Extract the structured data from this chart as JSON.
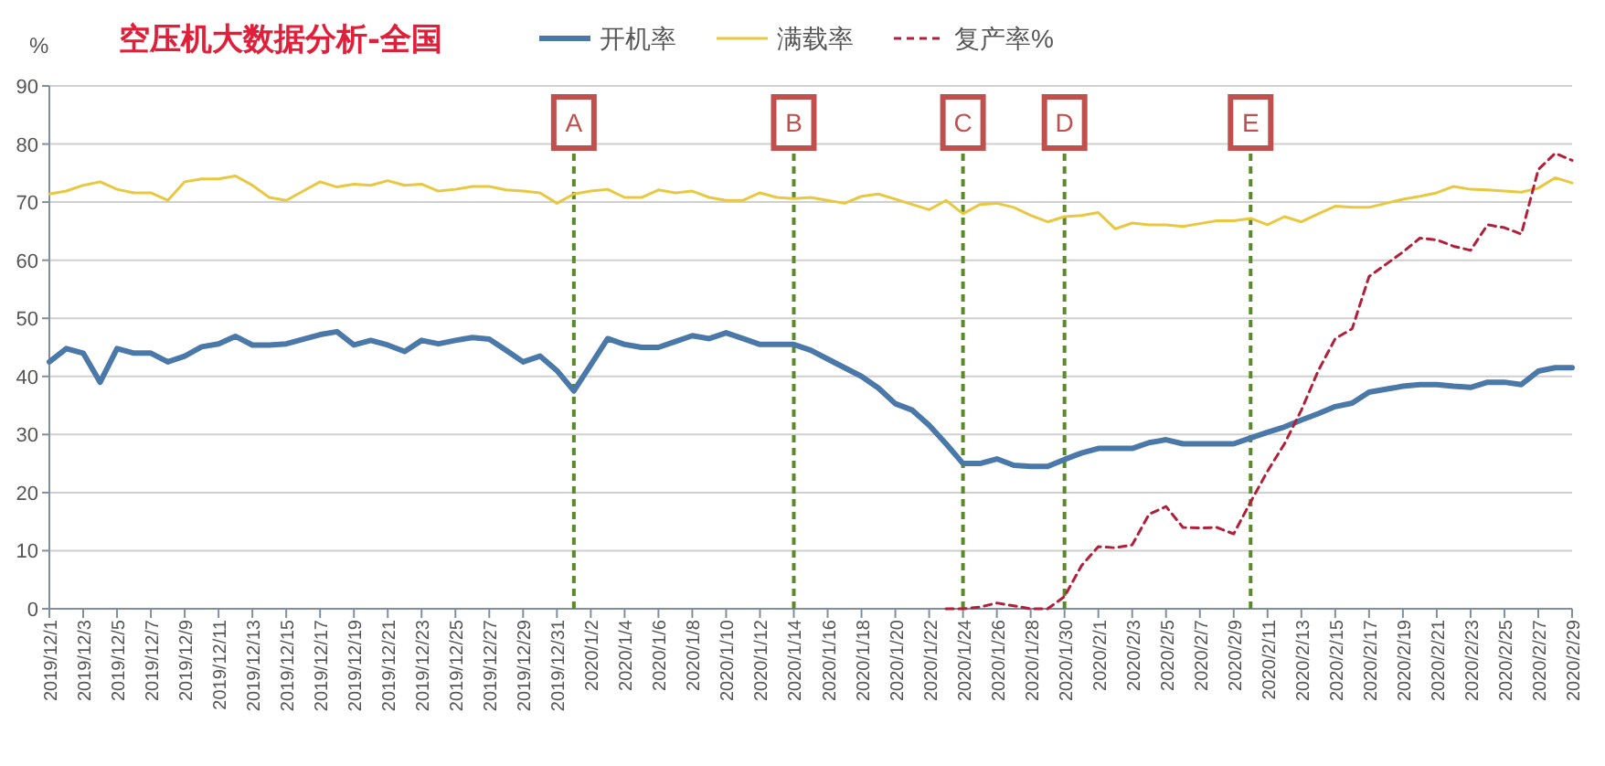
{
  "chart_data": {
    "type": "line",
    "title": "空压机大数据分析-全国",
    "ylabel": "%",
    "x": [
      "2019-12-01",
      "2019-12-02",
      "2019-12-03",
      "2019-12-04",
      "2019-12-05",
      "2019-12-06",
      "2019-12-07",
      "2019-12-08",
      "2019-12-09",
      "2019-12-10",
      "2019-12-11",
      "2019-12-12",
      "2019-12-13",
      "2019-12-14",
      "2019-12-15",
      "2019-12-16",
      "2019-12-17",
      "2019-12-18",
      "2019-12-19",
      "2019-12-20",
      "2019-12-21",
      "2019-12-22",
      "2019-12-23",
      "2019-12-24",
      "2019-12-25",
      "2019-12-26",
      "2019-12-27",
      "2019-12-28",
      "2019-12-29",
      "2019-12-30",
      "2019-12-31",
      "2020-01-01",
      "2020-01-02",
      "2020-01-03",
      "2020-01-04",
      "2020-01-05",
      "2020-01-06",
      "2020-01-07",
      "2020-01-08",
      "2020-01-09",
      "2020-01-10",
      "2020-01-11",
      "2020-01-12",
      "2020-01-13",
      "2020-01-14",
      "2020-01-15",
      "2020-01-16",
      "2020-01-17",
      "2020-01-18",
      "2020-01-19",
      "2020-01-20",
      "2020-01-21",
      "2020-01-22",
      "2020-01-23",
      "2020-01-24",
      "2020-01-25",
      "2020-01-26",
      "2020-01-27",
      "2020-01-28",
      "2020-01-29",
      "2020-01-30",
      "2020-01-31",
      "2020-02-01",
      "2020-02-02",
      "2020-02-03",
      "2020-02-04",
      "2020-02-05",
      "2020-02-06",
      "2020-02-07",
      "2020-02-08",
      "2020-02-09",
      "2020-02-10",
      "2020-02-11",
      "2020-02-12",
      "2020-02-13",
      "2020-02-14",
      "2020-02-15",
      "2020-02-16",
      "2020-02-17",
      "2020-02-18",
      "2020-02-19",
      "2020-02-20",
      "2020-02-21",
      "2020-02-22",
      "2020-02-23",
      "2020-02-24",
      "2020-02-25",
      "2020-02-26",
      "2020-02-27",
      "2020-02-28",
      "2020-02-29"
    ],
    "series": [
      {
        "name": "开机率",
        "color": "#4a78a8",
        "line_style": "solid",
        "values": [
          42.5,
          44.8,
          44,
          39,
          44.8,
          44,
          44,
          42.5,
          43.5,
          45.1,
          45.6,
          46.9,
          45.4,
          45.4,
          45.6,
          46.4,
          47.2,
          47.7,
          45.4,
          46.2,
          45.4,
          44.3,
          46.2,
          45.6,
          46.2,
          46.7,
          46.4,
          44.5,
          42.5,
          43.5,
          41,
          37.5,
          42,
          46.5,
          45.5,
          45,
          45,
          46,
          47,
          46.5,
          47.5,
          46.5,
          45.5,
          45.5,
          45.5,
          44.5,
          43,
          41.5,
          40,
          38,
          35.3,
          34.2,
          31.6,
          28.4,
          25,
          25,
          25.8,
          24.7,
          24.5,
          24.5,
          25.7,
          26.8,
          27.6,
          27.6,
          27.6,
          28.6,
          29.1,
          28.4,
          28.4,
          28.4,
          28.4,
          29.4,
          30.4,
          31.3,
          32.5,
          33.6,
          34.8,
          35.4,
          37.3,
          37.8,
          38.3,
          38.6,
          38.6,
          38.3,
          38.1,
          39,
          39,
          38.6,
          40.9,
          41.5,
          41.5
        ]
      },
      {
        "name": "满载率",
        "color": "#e8c840",
        "line_style": "solid",
        "values": [
          71.4,
          71.9,
          72.9,
          73.5,
          72.2,
          71.6,
          71.6,
          70.3,
          73.5,
          74,
          74,
          74.5,
          72.9,
          70.8,
          70.3,
          71.9,
          73.5,
          72.6,
          73.1,
          72.9,
          73.7,
          72.9,
          73.1,
          71.9,
          72.2,
          72.7,
          72.7,
          72.1,
          71.9,
          71.6,
          69.8,
          71.4,
          71.9,
          72.2,
          70.8,
          70.8,
          72.1,
          71.6,
          71.9,
          70.8,
          70.3,
          70.3,
          71.6,
          70.8,
          70.6,
          70.8,
          70.3,
          69.8,
          71,
          71.4,
          70.5,
          69.6,
          68.7,
          70.3,
          68,
          69.6,
          69.8,
          69.1,
          67.7,
          66.6,
          67.5,
          67.7,
          68.2,
          65.4,
          66.4,
          66.1,
          66.1,
          65.8,
          66.3,
          66.8,
          66.8,
          67.2,
          66.1,
          67.5,
          66.6,
          68,
          69.3,
          69.1,
          69.1,
          69.8,
          70.5,
          71,
          71.6,
          72.7,
          72.2,
          72.1,
          71.9,
          71.7,
          72.4,
          74.2,
          73.3
        ]
      },
      {
        "name": "复产率%",
        "color": "#b0203a",
        "line_style": "dashed",
        "x": [
          "2020-01-23",
          "2020-01-24",
          "2020-01-25",
          "2020-01-26",
          "2020-01-27",
          "2020-01-28",
          "2020-01-29",
          "2020-01-30",
          "2020-01-31",
          "2020-02-01",
          "2020-02-02",
          "2020-02-03",
          "2020-02-04",
          "2020-02-05",
          "2020-02-06",
          "2020-02-07",
          "2020-02-08",
          "2020-02-09",
          "2020-02-10",
          "2020-02-11",
          "2020-02-12",
          "2020-02-13",
          "2020-02-14",
          "2020-02-15",
          "2020-02-16",
          "2020-02-17",
          "2020-02-18",
          "2020-02-19",
          "2020-02-20",
          "2020-02-21",
          "2020-02-22",
          "2020-02-23",
          "2020-02-24",
          "2020-02-25",
          "2020-02-26",
          "2020-02-27",
          "2020-02-28",
          "2020-02-29"
        ],
        "values": [
          0,
          0,
          0.3,
          1,
          0.5,
          0,
          0,
          2.1,
          7.4,
          10.7,
          10.5,
          11,
          16.3,
          17.6,
          14,
          13.9,
          14,
          12.9,
          18.4,
          23.7,
          28.4,
          34.2,
          41,
          46.5,
          48.2,
          57.2,
          59.3,
          61.4,
          63.8,
          63.5,
          62.4,
          61.7,
          66.1,
          65.6,
          64.5,
          75.6,
          78.4,
          77.2
        ]
      }
    ],
    "xlim": [
      "2019-12-01",
      "2020-02-29"
    ],
    "xticks": [
      {
        "value": "2019-12-01",
        "label": "2019/12/1"
      },
      {
        "value": "2019-12-03",
        "label": "2019/12/3"
      },
      {
        "value": "2019-12-05",
        "label": "2019/12/5"
      },
      {
        "value": "2019-12-07",
        "label": "2019/12/7"
      },
      {
        "value": "2019-12-09",
        "label": "2019/12/9"
      },
      {
        "value": "2019-12-11",
        "label": "2019/12/11"
      },
      {
        "value": "2019-12-13",
        "label": "2019/12/13"
      },
      {
        "value": "2019-12-15",
        "label": "2019/12/15"
      },
      {
        "value": "2019-12-17",
        "label": "2019/12/17"
      },
      {
        "value": "2019-12-19",
        "label": "2019/12/19"
      },
      {
        "value": "2019-12-21",
        "label": "2019/12/21"
      },
      {
        "value": "2019-12-23",
        "label": "2019/12/23"
      },
      {
        "value": "2019-12-25",
        "label": "2019/12/25"
      },
      {
        "value": "2019-12-27",
        "label": "2019/12/27"
      },
      {
        "value": "2019-12-29",
        "label": "2019/12/29"
      },
      {
        "value": "2019-12-31",
        "label": "2019/12/31"
      },
      {
        "value": "2020-01-02",
        "label": "2020/1/2"
      },
      {
        "value": "2020-01-04",
        "label": "2020/1/4"
      },
      {
        "value": "2020-01-06",
        "label": "2020/1/6"
      },
      {
        "value": "2020-01-08",
        "label": "2020/1/8"
      },
      {
        "value": "2020-01-10",
        "label": "2020/1/10"
      },
      {
        "value": "2020-01-12",
        "label": "2020/1/12"
      },
      {
        "value": "2020-01-14",
        "label": "2020/1/14"
      },
      {
        "value": "2020-01-16",
        "label": "2020/1/16"
      },
      {
        "value": "2020-01-18",
        "label": "2020/1/18"
      },
      {
        "value": "2020-01-20",
        "label": "2020/1/20"
      },
      {
        "value": "2020-01-22",
        "label": "2020/1/22"
      },
      {
        "value": "2020-01-24",
        "label": "2020/1/24"
      },
      {
        "value": "2020-01-26",
        "label": "2020/1/26"
      },
      {
        "value": "2020-01-28",
        "label": "2020/1/28"
      },
      {
        "value": "2020-01-30",
        "label": "2020/1/30"
      },
      {
        "value": "2020-02-01",
        "label": "2020/2/1"
      },
      {
        "value": "2020-02-03",
        "label": "2020/2/3"
      },
      {
        "value": "2020-02-05",
        "label": "2020/2/5"
      },
      {
        "value": "2020-02-07",
        "label": "2020/2/7"
      },
      {
        "value": "2020-02-09",
        "label": "2020/2/9"
      },
      {
        "value": "2020-02-11",
        "label": "2020/2/11"
      },
      {
        "value": "2020-02-13",
        "label": "2020/2/13"
      },
      {
        "value": "2020-02-15",
        "label": "2020/2/15"
      },
      {
        "value": "2020-02-17",
        "label": "2020/2/17"
      },
      {
        "value": "2020-02-19",
        "label": "2020/2/19"
      },
      {
        "value": "2020-02-21",
        "label": "2020/2/21"
      },
      {
        "value": "2020-02-23",
        "label": "2020/2/23"
      },
      {
        "value": "2020-02-25",
        "label": "2020/2/25"
      },
      {
        "value": "2020-02-27",
        "label": "2020/2/27"
      },
      {
        "value": "2020-02-29",
        "label": "2020/2/29"
      }
    ],
    "ylim": [
      0,
      90
    ],
    "yticks": [
      0,
      10,
      20,
      30,
      40,
      50,
      60,
      70,
      80,
      90
    ],
    "grid": "y",
    "legend": "top",
    "marker": "none",
    "ref_lines": [
      {
        "axis": "x",
        "value": "2020-01-01",
        "label": "A",
        "color": "#5a8a2a",
        "line_style": "dashed"
      },
      {
        "axis": "x",
        "value": "2020-01-14",
        "label": "B",
        "color": "#5a8a2a",
        "line_style": "dashed"
      },
      {
        "axis": "x",
        "value": "2020-01-24",
        "label": "C",
        "color": "#5a8a2a",
        "line_style": "dashed"
      },
      {
        "axis": "x",
        "value": "2020-01-30",
        "label": "D",
        "color": "#5a8a2a",
        "line_style": "dashed"
      },
      {
        "axis": "x",
        "value": "2020-02-10",
        "label": "E",
        "color": "#5a8a2a",
        "line_style": "dashed"
      }
    ]
  }
}
